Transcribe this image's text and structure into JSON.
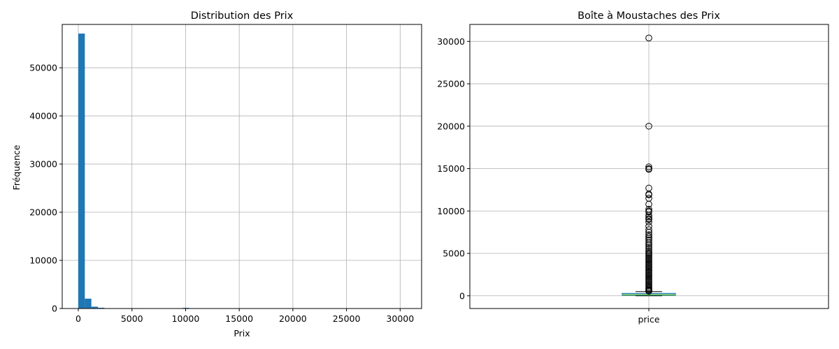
{
  "chart_data": [
    {
      "type": "bar",
      "title": "Distribution des Prix",
      "xlabel": "Prix",
      "ylabel": "Fréquence",
      "xlim": [
        -1500,
        32000
      ],
      "ylim": [
        0,
        59000
      ],
      "xticks": [
        0,
        5000,
        10000,
        15000,
        20000,
        25000,
        30000
      ],
      "yticks": [
        0,
        10000,
        20000,
        30000,
        40000,
        50000
      ],
      "grid": true,
      "color": "#1f77b4",
      "bin_width": 608,
      "bins": [
        {
          "x0": 0,
          "count": 57100
        },
        {
          "x0": 608,
          "count": 2050
        },
        {
          "x0": 1216,
          "count": 380
        },
        {
          "x0": 1824,
          "count": 160
        },
        {
          "x0": 2432,
          "count": 60
        },
        {
          "x0": 3040,
          "count": 30
        },
        {
          "x0": 3648,
          "count": 20
        },
        {
          "x0": 4256,
          "count": 12
        },
        {
          "x0": 4864,
          "count": 8
        },
        {
          "x0": 9728,
          "count": 140
        }
      ]
    },
    {
      "type": "boxplot",
      "title": "Boîte à Moustaches des Prix",
      "categories": [
        "price"
      ],
      "ylim": [
        -1500,
        32000
      ],
      "yticks": [
        0,
        5000,
        10000,
        15000,
        20000,
        25000,
        30000
      ],
      "grid": true,
      "box": {
        "q1": 70,
        "median": 120,
        "q3": 280,
        "whisker_low": 0,
        "whisker_high": 500
      },
      "box_color": "#1f77b4",
      "median_color": "#2ca02c",
      "outliers": [
        30400,
        20000,
        15200,
        15000,
        14900,
        12700,
        12000,
        11900,
        11500,
        10800,
        10200,
        10000,
        9900,
        9500,
        9300,
        9100,
        9000,
        8700,
        8200,
        7800,
        7500,
        7200,
        7000,
        6800,
        6600,
        6300,
        6100,
        5900,
        5700,
        5500,
        5300,
        5100,
        4950,
        4800,
        4650,
        4500,
        4350,
        4200,
        4050,
        3900,
        3750,
        3600,
        3450,
        3300,
        3150,
        3000,
        2850,
        2700,
        2550,
        2400,
        2250,
        2100,
        1950,
        1800,
        1650,
        1500,
        1350,
        1200,
        1050,
        900,
        800,
        700,
        600,
        550
      ]
    }
  ]
}
